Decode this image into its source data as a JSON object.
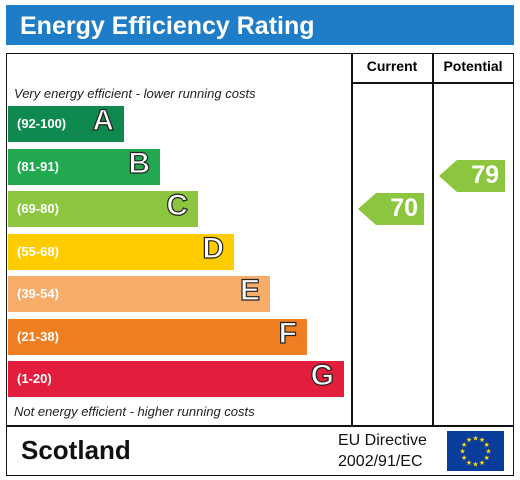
{
  "title": "Energy Efficiency Rating",
  "columns": {
    "current": "Current",
    "potential": "Potential"
  },
  "notes": {
    "top": "Very energy efficient - lower running costs",
    "bottom": "Not energy efficient - higher running costs"
  },
  "chart_data": {
    "type": "bar",
    "categories": [
      "A",
      "B",
      "C",
      "D",
      "E",
      "F",
      "G"
    ],
    "ranges": [
      "(92-100)",
      "(81-91)",
      "(69-80)",
      "(55-68)",
      "(39-54)",
      "(21-38)",
      "(1-20)"
    ],
    "colors": [
      "#0f8a4f",
      "#22a94f",
      "#8cc63f",
      "#ffcc00",
      "#f7ac6a",
      "#ef7d22",
      "#e31d3c"
    ],
    "current": {
      "value": 70,
      "band": "C",
      "color": "#8cc63f"
    },
    "potential": {
      "value": 79,
      "band": "C",
      "color": "#8cc63f"
    }
  },
  "footer": {
    "country": "Scotland",
    "directive_line1": "EU Directive",
    "directive_line2": "2002/91/EC",
    "flag_icon": "eu-flag-icon"
  }
}
